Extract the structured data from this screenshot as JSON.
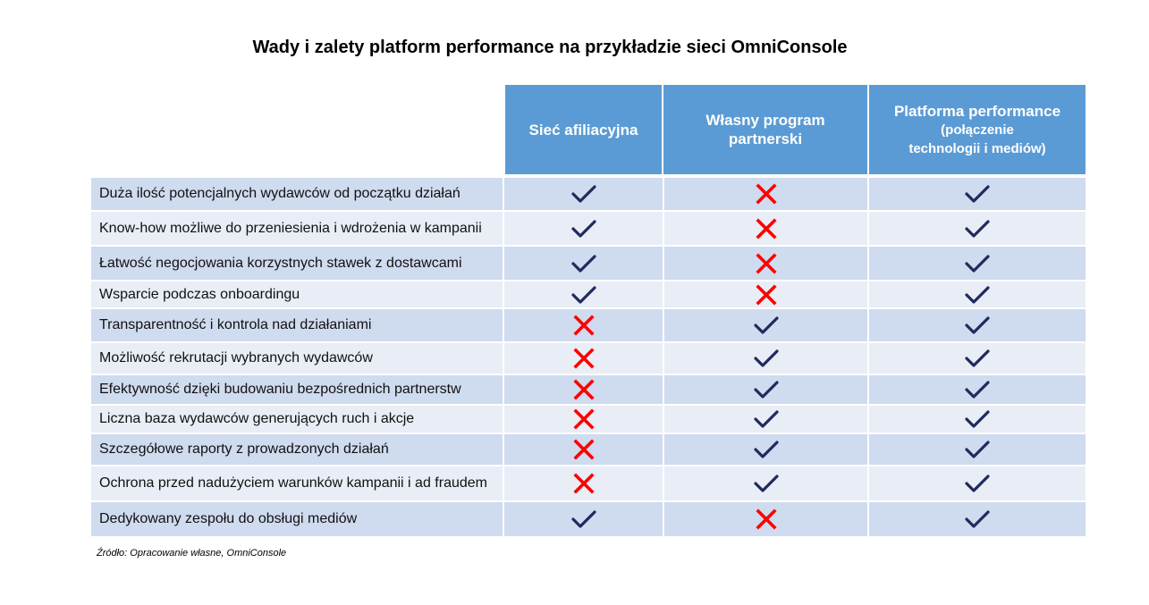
{
  "title": "Wady i zalety  platform performance na przykładzie sieci OmniConsole",
  "columns": [
    {
      "label": "Sieć afiliacyjna",
      "sub": ""
    },
    {
      "label": "Własny program partnerski",
      "sub": ""
    },
    {
      "label": "Platforma performance",
      "sub": "(połączenie technologii i mediów)"
    }
  ],
  "colors": {
    "header": "#5b9bd5",
    "row_dark": "#cfdbee",
    "row_light": "#e8edf6",
    "check": "#1f2a5e",
    "cross": "#ff0000"
  },
  "rows": [
    {
      "label": "Duża ilość potencjalnych wydawców od początku działań",
      "values": [
        "check-icon",
        "cross-icon",
        "check-icon"
      ]
    },
    {
      "label": "Know-how możliwe do przeniesienia i wdrożenia w kampanii",
      "values": [
        "check-icon",
        "cross-icon",
        "check-icon"
      ]
    },
    {
      "label": "Łatwość negocjowania korzystnych stawek z dostawcami",
      "values": [
        "check-icon",
        "cross-icon",
        "check-icon"
      ]
    },
    {
      "label": "Wsparcie podczas onboardingu",
      "values": [
        "check-icon",
        "cross-icon",
        "check-icon"
      ]
    },
    {
      "label": "Transparentność i kontrola nad działaniami",
      "values": [
        "cross-icon",
        "check-icon",
        "check-icon"
      ]
    },
    {
      "label": "Możliwość rekrutacji wybranych wydawców",
      "values": [
        "cross-icon",
        "check-icon",
        "check-icon"
      ]
    },
    {
      "label": "Efektywność dzięki budowaniu bezpośrednich partnerstw",
      "values": [
        "cross-icon",
        "check-icon",
        "check-icon"
      ]
    },
    {
      "label": "Liczna baza wydawców generujących ruch i akcje",
      "values": [
        "cross-icon",
        "check-icon",
        "check-icon"
      ]
    },
    {
      "label": "Szczegółowe raporty z prowadzonych działań",
      "values": [
        "cross-icon",
        "check-icon",
        "check-icon"
      ]
    },
    {
      "label": "Ochrona przed nadużyciem warunków kampanii i ad fraudem",
      "values": [
        "cross-icon",
        "check-icon",
        "check-icon"
      ]
    },
    {
      "label": "Dedykowany zespołu do obsługi mediów",
      "values": [
        "check-icon",
        "cross-icon",
        "check-icon"
      ]
    }
  ],
  "source": "Źródło: Opracowanie własne, OmniConsole"
}
